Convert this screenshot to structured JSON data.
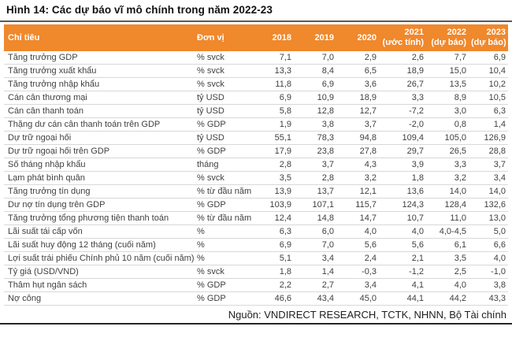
{
  "colors": {
    "header_bg": "#F0882C",
    "header_text": "#FFFFFF",
    "body_text": "#3F3F3F",
    "row_divider": "#D8D8D8",
    "title_rule": "#595959",
    "bottom_rule": "#262626"
  },
  "chart_data": {
    "type": "table",
    "title": "Hình 14: Các dự báo vĩ mô chính trong năm 2022-23",
    "source": "Nguồn: VNDIRECT RESEARCH, TCTK, NHNN, Bộ Tài chính",
    "columns": [
      "Chỉ tiêu",
      "Đơn vị",
      "2018",
      "2019",
      "2020",
      "2021\n(ước tính)",
      "2022\n(dự báo)",
      "2023\n(dự báo)"
    ],
    "rows": [
      [
        "Tăng trưởng GDP",
        "% svck",
        "7,1",
        "7,0",
        "2,9",
        "2,6",
        "7,7",
        "6,9"
      ],
      [
        "Tăng trưởng xuất khẩu",
        "% svck",
        "13,3",
        "8,4",
        "6,5",
        "18,9",
        "15,0",
        "10,4"
      ],
      [
        "Tăng trưởng nhập khẩu",
        "% svck",
        "11,8",
        "6,9",
        "3,6",
        "26,7",
        "13,5",
        "10,2"
      ],
      [
        "Cán cân thương mại",
        "tỷ USD",
        "6,9",
        "10,9",
        "18,9",
        "3,3",
        "8,9",
        "10,5"
      ],
      [
        "Cán cân thanh toán",
        "tỷ USD",
        "5,8",
        "12,8",
        "12,7",
        "-7,2",
        "3,0",
        "6,3"
      ],
      [
        "Thặng dư cán cân thanh toán trên GDP",
        "% GDP",
        "1,9",
        "3,8",
        "3,7",
        "-2,0",
        "0,8",
        "1,4"
      ],
      [
        "Dự trữ ngoại hối",
        "tỷ USD",
        "55,1",
        "78,3",
        "94,8",
        "109,4",
        "105,0",
        "126,9"
      ],
      [
        "Dự trữ ngoại hối trên GDP",
        "% GDP",
        "17,9",
        "23,8",
        "27,8",
        "29,7",
        "26,5",
        "28,8"
      ],
      [
        "Số tháng nhập khẩu",
        "tháng",
        "2,8",
        "3,7",
        "4,3",
        "3,9",
        "3,3",
        "3,7"
      ],
      [
        "Lạm phát bình quân",
        "% svck",
        "3,5",
        "2,8",
        "3,2",
        "1,8",
        "3,2",
        "3,4"
      ],
      [
        "Tăng trưởng tín dụng",
        "% từ đầu năm",
        "13,9",
        "13,7",
        "12,1",
        "13,6",
        "14,0",
        "14,0"
      ],
      [
        "Dư nợ tín dụng trên GDP",
        "% GDP",
        "103,9",
        "107,1",
        "115,7",
        "124,3",
        "128,4",
        "132,6"
      ],
      [
        "Tăng trưởng tổng phương tiện thanh toán",
        "% từ đầu năm",
        "12,4",
        "14,8",
        "14,7",
        "10,7",
        "11,0",
        "13,0"
      ],
      [
        "Lãi suất tái cấp vốn",
        "%",
        "6,3",
        "6,0",
        "4,0",
        "4,0",
        "4,0-4,5",
        "5,0"
      ],
      [
        "Lãi suất huy động 12 tháng (cuối năm)",
        "%",
        "6,9",
        "7,0",
        "5,6",
        "5,6",
        "6,1",
        "6,6"
      ],
      [
        "Lợi suất trái phiếu Chính phủ 10 năm (cuối năm)",
        "%",
        "5,1",
        "3,4",
        "2,4",
        "2,1",
        "3,5",
        "4,0"
      ],
      [
        "Tỷ giá (USD/VND)",
        "% svck",
        "1,8",
        "1,4",
        "-0,3",
        "-1,2",
        "2,5",
        "-1,0"
      ],
      [
        "Thâm hụt ngân sách",
        "% GDP",
        "2,2",
        "2,7",
        "3,4",
        "4,1",
        "4,0",
        "3,8"
      ],
      [
        "Nợ công",
        "% GDP",
        "46,6",
        "43,4",
        "45,0",
        "44,1",
        "44,2",
        "43,3"
      ]
    ]
  }
}
